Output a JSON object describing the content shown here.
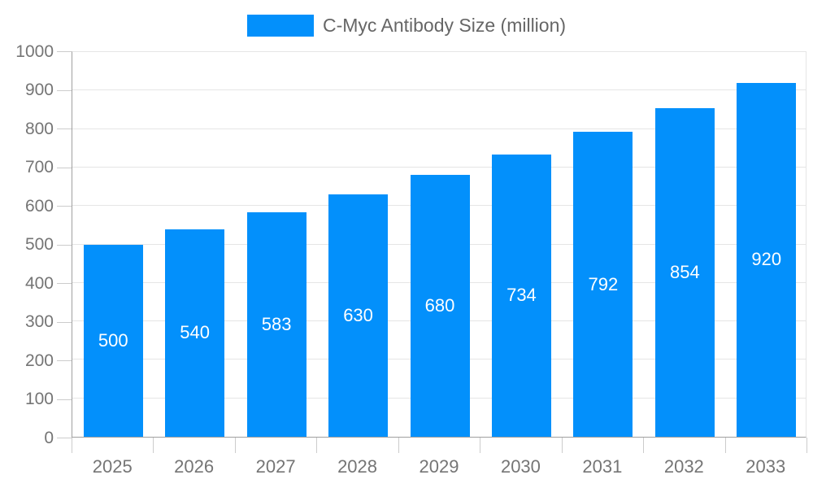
{
  "legend": {
    "label": "C-Myc Antibody Size (million)",
    "swatch_color": "#0390fb"
  },
  "chart_data": {
    "type": "bar",
    "title": "",
    "categories": [
      "2025",
      "2026",
      "2027",
      "2028",
      "2029",
      "2030",
      "2031",
      "2032",
      "2033"
    ],
    "values": [
      500,
      540,
      583,
      630,
      680,
      734,
      792,
      854,
      920
    ],
    "series_name": "C-Myc Antibody Size (million)",
    "xlabel": "",
    "ylabel": "",
    "ylim": [
      0,
      1000
    ],
    "yticks": [
      0,
      100,
      200,
      300,
      400,
      500,
      600,
      700,
      800,
      900,
      1000
    ],
    "grid": true,
    "legend_position": "top-center",
    "value_label_position": "inside-center",
    "colors": {
      "bar": "#0390fb",
      "value_label": "#ffffff",
      "axis_label": "#757575",
      "legend_text": "#666666",
      "axis_line": "#a0a0a0",
      "tick_line": "#cccccc",
      "gridline": "#e5e5e5",
      "background": "#ffffff"
    }
  }
}
